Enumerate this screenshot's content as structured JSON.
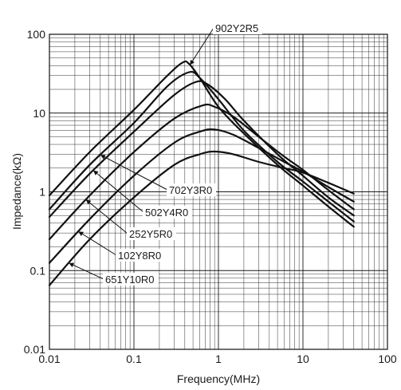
{
  "chart_data": {
    "type": "line",
    "title": "",
    "xlabel": "Frequency(MHz)",
    "ylabel": "Impedance(kΩ)",
    "xscale": "log",
    "yscale": "log",
    "xlim": [
      0.01,
      100
    ],
    "ylim": [
      0.01,
      100
    ],
    "grid": true,
    "x_tick_labels": [
      "0.01",
      "0.1",
      "1",
      "10",
      "100"
    ],
    "y_tick_labels": [
      "0.01",
      "0.1",
      "1",
      "10",
      "100"
    ],
    "series": [
      {
        "name": "902Y2R5",
        "points": [
          [
            0.01,
            0.9
          ],
          [
            0.03,
            3.2
          ],
          [
            0.1,
            11
          ],
          [
            0.25,
            30
          ],
          [
            0.38,
            44
          ],
          [
            0.45,
            42
          ],
          [
            0.6,
            28
          ],
          [
            1,
            12
          ],
          [
            2,
            5.5
          ],
          [
            5,
            2.2
          ],
          [
            10,
            1.2
          ],
          [
            20,
            0.65
          ],
          [
            40,
            0.36
          ]
        ]
      },
      {
        "name": "702Y3R0",
        "points": [
          [
            0.01,
            0.6
          ],
          [
            0.03,
            2.2
          ],
          [
            0.1,
            7.5
          ],
          [
            0.25,
            22
          ],
          [
            0.45,
            33
          ],
          [
            0.6,
            28
          ],
          [
            1,
            15
          ],
          [
            2,
            6
          ],
          [
            5,
            2.4
          ],
          [
            10,
            1.35
          ],
          [
            20,
            0.75
          ],
          [
            40,
            0.42
          ]
        ]
      },
      {
        "name": "502Y4R0",
        "points": [
          [
            0.01,
            0.48
          ],
          [
            0.03,
            1.7
          ],
          [
            0.1,
            5.8
          ],
          [
            0.3,
            17
          ],
          [
            0.55,
            25
          ],
          [
            0.75,
            23
          ],
          [
            1.2,
            15
          ],
          [
            2,
            8
          ],
          [
            5,
            3
          ],
          [
            10,
            1.6
          ],
          [
            20,
            0.85
          ],
          [
            40,
            0.5
          ]
        ]
      },
      {
        "name": "252Y5R0",
        "points": [
          [
            0.01,
            0.25
          ],
          [
            0.03,
            0.9
          ],
          [
            0.1,
            3.2
          ],
          [
            0.3,
            8.5
          ],
          [
            0.65,
            12.5
          ],
          [
            0.9,
            12
          ],
          [
            1.5,
            9
          ],
          [
            3,
            5
          ],
          [
            6,
            2.8
          ],
          [
            10,
            1.9
          ],
          [
            20,
            1.05
          ],
          [
            40,
            0.6
          ]
        ]
      },
      {
        "name": "102Y8R0",
        "points": [
          [
            0.01,
            0.125
          ],
          [
            0.03,
            0.45
          ],
          [
            0.1,
            1.6
          ],
          [
            0.3,
            4.2
          ],
          [
            0.6,
            5.8
          ],
          [
            0.9,
            6.2
          ],
          [
            1.5,
            5.3
          ],
          [
            3,
            3.6
          ],
          [
            6,
            2.4
          ],
          [
            10,
            1.8
          ],
          [
            20,
            1.15
          ],
          [
            40,
            0.75
          ]
        ]
      },
      {
        "name": "651Y10R0",
        "points": [
          [
            0.01,
            0.065
          ],
          [
            0.03,
            0.25
          ],
          [
            0.1,
            0.85
          ],
          [
            0.3,
            2.2
          ],
          [
            0.6,
            3.0
          ],
          [
            0.9,
            3.25
          ],
          [
            1.5,
            3.0
          ],
          [
            3,
            2.4
          ],
          [
            6,
            2.0
          ],
          [
            10,
            1.75
          ],
          [
            20,
            1.3
          ],
          [
            40,
            0.95
          ]
        ]
      }
    ]
  }
}
